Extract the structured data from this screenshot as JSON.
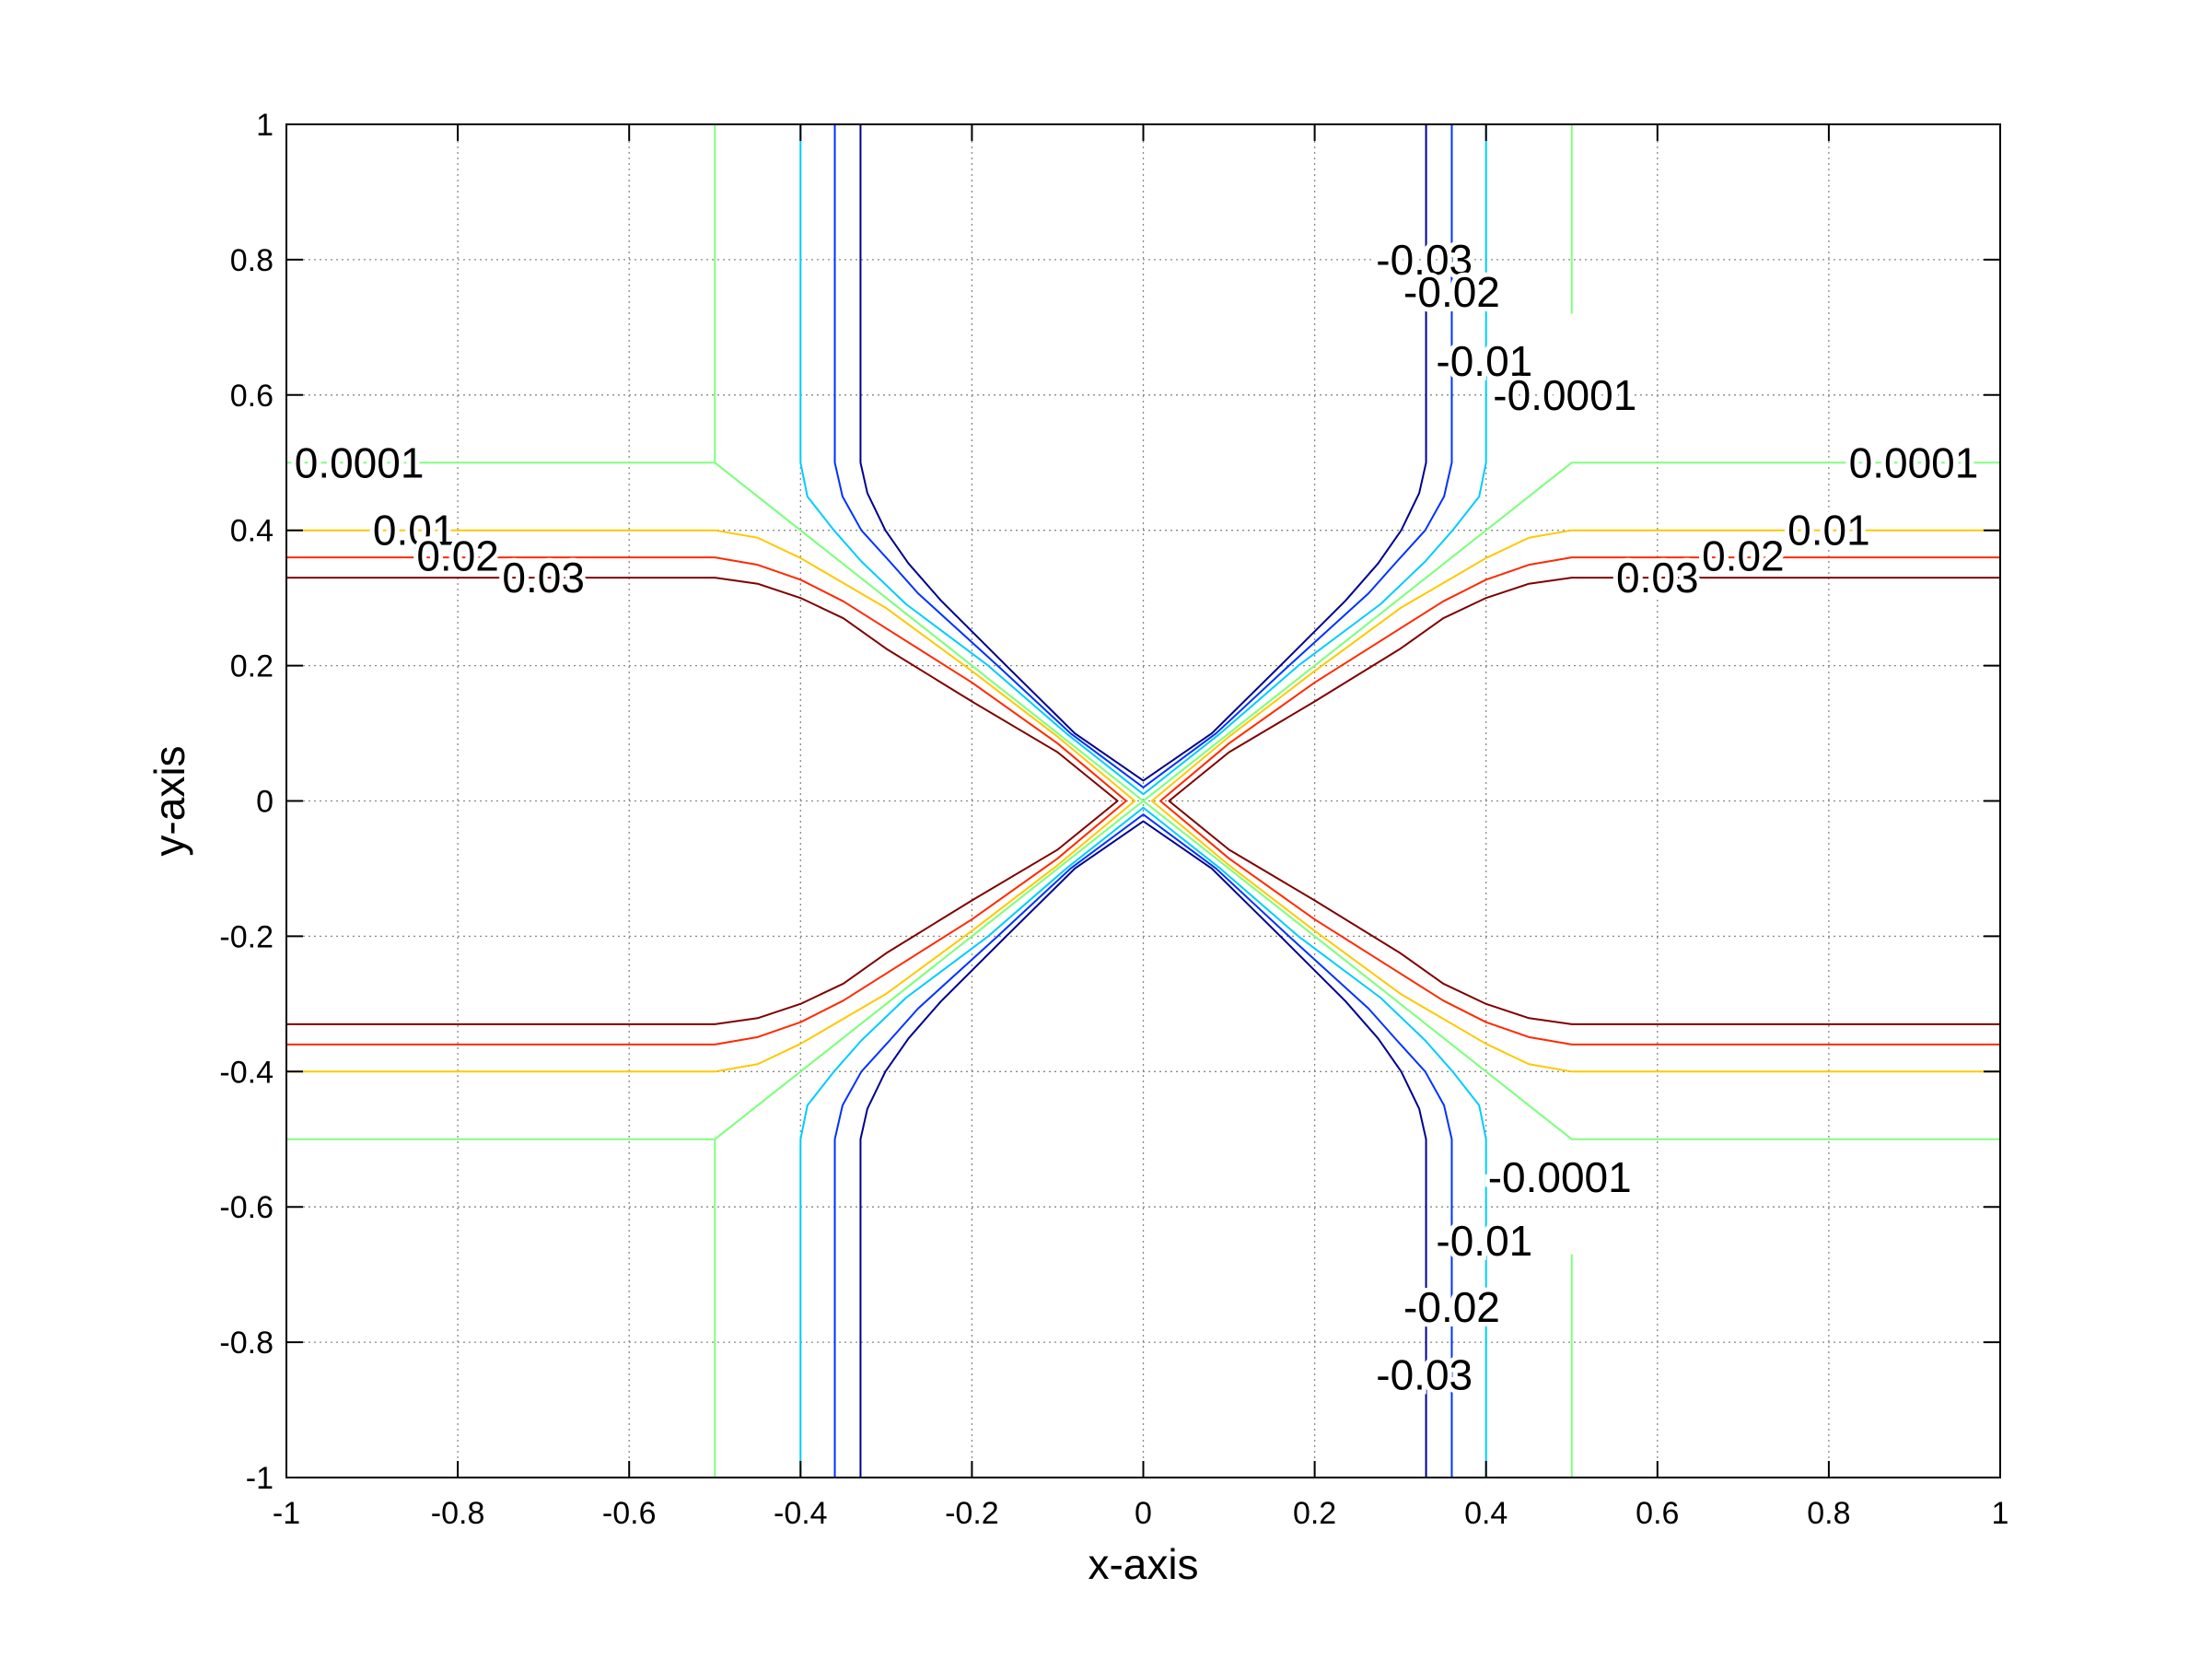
{
  "chart_data": {
    "type": "contour",
    "title": "",
    "xlabel": "x-axis",
    "ylabel": "y-axis",
    "xlim": [
      -1,
      1
    ],
    "ylim": [
      -1,
      1
    ],
    "grid": true,
    "xticks": [
      -1,
      -0.8,
      -0.6,
      -0.4,
      -0.2,
      0,
      0.2,
      0.4,
      0.6,
      0.8,
      1
    ],
    "yticks": [
      -1,
      -0.8,
      -0.6,
      -0.4,
      -0.2,
      0,
      0.2,
      0.4,
      0.6,
      0.8,
      1
    ],
    "xtick_labels": [
      "-1",
      "-0.8",
      "-0.6",
      "-0.4",
      "-0.2",
      "0",
      "0.2",
      "0.4",
      "0.6",
      "0.8",
      "1"
    ],
    "ytick_labels": [
      "-1",
      "-0.8",
      "-0.6",
      "-0.4",
      "-0.2",
      "0",
      "0.2",
      "0.4",
      "0.6",
      "0.8",
      "1"
    ],
    "levels": [
      -0.03,
      -0.02,
      -0.01,
      -0.0001,
      0.0001,
      0.01,
      0.02,
      0.03
    ],
    "contours": [
      {
        "level": 0.03,
        "color": "#800000",
        "lines": [
          [
            [
              1,
              0.33
            ],
            [
              0.5,
              0.33
            ],
            [
              0.45,
              0.321
            ],
            [
              0.4,
              0.3
            ],
            [
              0.35,
              0.27
            ],
            [
              0.3,
              0.225
            ],
            [
              0.2,
              0.147
            ],
            [
              0.1,
              0.072
            ],
            [
              0.03,
              0
            ],
            [
              0.1,
              -0.072
            ],
            [
              0.2,
              -0.147
            ],
            [
              0.3,
              -0.225
            ],
            [
              0.35,
              -0.27
            ],
            [
              0.4,
              -0.3
            ],
            [
              0.45,
              -0.321
            ],
            [
              0.5,
              -0.33
            ],
            [
              1,
              -0.33
            ]
          ],
          [
            [
              -1,
              0.33
            ],
            [
              -0.5,
              0.33
            ],
            [
              -0.45,
              0.321
            ],
            [
              -0.4,
              0.3
            ],
            [
              -0.35,
              0.27
            ],
            [
              -0.3,
              0.225
            ],
            [
              -0.2,
              0.147
            ],
            [
              -0.1,
              0.072
            ],
            [
              -0.03,
              0
            ],
            [
              -0.1,
              -0.072
            ],
            [
              -0.2,
              -0.147
            ],
            [
              -0.3,
              -0.225
            ],
            [
              -0.35,
              -0.27
            ],
            [
              -0.4,
              -0.3
            ],
            [
              -0.45,
              -0.321
            ],
            [
              -0.5,
              -0.33
            ],
            [
              -1,
              -0.33
            ]
          ]
        ]
      },
      {
        "level": 0.02,
        "color": "#ff2a00",
        "lines": [
          [
            [
              1,
              0.36
            ],
            [
              0.5,
              0.36
            ],
            [
              0.45,
              0.349
            ],
            [
              0.4,
              0.327
            ],
            [
              0.35,
              0.295
            ],
            [
              0.3,
              0.255
            ],
            [
              0.2,
              0.175
            ],
            [
              0.1,
              0.085
            ],
            [
              0.02,
              0
            ],
            [
              0.1,
              -0.085
            ],
            [
              0.2,
              -0.175
            ],
            [
              0.3,
              -0.255
            ],
            [
              0.35,
              -0.295
            ],
            [
              0.4,
              -0.327
            ],
            [
              0.45,
              -0.349
            ],
            [
              0.5,
              -0.36
            ],
            [
              1,
              -0.36
            ]
          ],
          [
            [
              -1,
              0.36
            ],
            [
              -0.5,
              0.36
            ],
            [
              -0.45,
              0.349
            ],
            [
              -0.4,
              0.327
            ],
            [
              -0.35,
              0.295
            ],
            [
              -0.3,
              0.255
            ],
            [
              -0.2,
              0.175
            ],
            [
              -0.1,
              0.085
            ],
            [
              -0.02,
              0
            ],
            [
              -0.1,
              -0.085
            ],
            [
              -0.2,
              -0.175
            ],
            [
              -0.3,
              -0.255
            ],
            [
              -0.35,
              -0.295
            ],
            [
              -0.4,
              -0.327
            ],
            [
              -0.45,
              -0.349
            ],
            [
              -0.5,
              -0.36
            ],
            [
              -1,
              -0.36
            ]
          ]
        ]
      },
      {
        "level": 0.01,
        "color": "#ffc800",
        "lines": [
          [
            [
              1,
              0.4
            ],
            [
              0.5,
              0.4
            ],
            [
              0.45,
              0.389
            ],
            [
              0.4,
              0.359
            ],
            [
              0.35,
              0.322
            ],
            [
              0.3,
              0.285
            ],
            [
              0.2,
              0.192
            ],
            [
              0.1,
              0.095
            ],
            [
              0.01,
              0
            ],
            [
              0.1,
              -0.095
            ],
            [
              0.2,
              -0.192
            ],
            [
              0.3,
              -0.285
            ],
            [
              0.35,
              -0.322
            ],
            [
              0.4,
              -0.359
            ],
            [
              0.45,
              -0.389
            ],
            [
              0.5,
              -0.4
            ],
            [
              1,
              -0.4
            ]
          ],
          [
            [
              -1,
              0.4
            ],
            [
              -0.5,
              0.4
            ],
            [
              -0.45,
              0.389
            ],
            [
              -0.4,
              0.359
            ],
            [
              -0.35,
              0.322
            ],
            [
              -0.3,
              0.285
            ],
            [
              -0.2,
              0.192
            ],
            [
              -0.1,
              0.095
            ],
            [
              -0.01,
              0
            ],
            [
              -0.1,
              -0.095
            ],
            [
              -0.2,
              -0.192
            ],
            [
              -0.3,
              -0.285
            ],
            [
              -0.35,
              -0.322
            ],
            [
              -0.4,
              -0.359
            ],
            [
              -0.45,
              -0.389
            ],
            [
              -0.5,
              -0.4
            ],
            [
              -1,
              -0.4
            ]
          ]
        ]
      },
      {
        "level": 0.0001,
        "color": "#80ff80",
        "lines": [
          [
            [
              1,
              0.5
            ],
            [
              0.5,
              0.5
            ],
            [
              0,
              0
            ],
            [
              0.5,
              -0.5
            ],
            [
              1,
              -0.5
            ]
          ],
          [
            [
              -1,
              0.5
            ],
            [
              -0.5,
              0.5
            ],
            [
              0,
              0
            ],
            [
              -0.5,
              -0.5
            ],
            [
              -1,
              -0.5
            ]
          ]
        ]
      },
      {
        "level": -0.0001,
        "color": "#80ff80",
        "lines": [
          [
            [
              -0.5,
              1
            ],
            [
              -0.5,
              0.5
            ],
            [
              0,
              0
            ],
            [
              0.5,
              0.5
            ]
          ],
          [
            [
              0.5,
              0.72
            ],
            [
              0.5,
              1
            ]
          ],
          [
            [
              -0.5,
              -1
            ],
            [
              -0.5,
              -0.5
            ],
            [
              0,
              0
            ],
            [
              0.5,
              -0.5
            ]
          ],
          [
            [
              0.5,
              -0.67
            ],
            [
              0.5,
              -1
            ]
          ]
        ]
      },
      {
        "level": -0.01,
        "color": "#00ccff",
        "lines": [
          [
            [
              0.4,
              1
            ],
            [
              0.4,
              0.5
            ],
            [
              0.392,
              0.45
            ],
            [
              0.361,
              0.4
            ],
            [
              0.329,
              0.354
            ],
            [
              0.277,
              0.291
            ],
            [
              0.181,
              0.2
            ],
            [
              0.09,
              0.1
            ],
            [
              0,
              0.01
            ],
            [
              -0.09,
              0.1
            ],
            [
              -0.181,
              0.2
            ],
            [
              -0.277,
              0.291
            ],
            [
              -0.329,
              0.354
            ],
            [
              -0.361,
              0.4
            ],
            [
              -0.392,
              0.45
            ],
            [
              -0.4,
              0.5
            ],
            [
              -0.4,
              1
            ]
          ],
          [
            [
              0.4,
              -1
            ],
            [
              0.4,
              -0.5
            ],
            [
              0.392,
              -0.45
            ],
            [
              0.361,
              -0.4
            ],
            [
              0.329,
              -0.354
            ],
            [
              0.277,
              -0.291
            ],
            [
              0.181,
              -0.2
            ],
            [
              0.09,
              -0.1
            ],
            [
              0,
              -0.01
            ],
            [
              -0.09,
              -0.1
            ],
            [
              -0.181,
              -0.2
            ],
            [
              -0.277,
              -0.291
            ],
            [
              -0.329,
              -0.354
            ],
            [
              -0.361,
              -0.4
            ],
            [
              -0.392,
              -0.45
            ],
            [
              -0.4,
              -0.5
            ],
            [
              -0.4,
              -1
            ]
          ]
        ]
      },
      {
        "level": -0.02,
        "color": "#0033ff",
        "lines": [
          [
            [
              0.36,
              1
            ],
            [
              0.36,
              0.5
            ],
            [
              0.351,
              0.45
            ],
            [
              0.329,
              0.4
            ],
            [
              0.296,
              0.354
            ],
            [
              0.263,
              0.307
            ],
            [
              0.17,
              0.2
            ],
            [
              0.085,
              0.1
            ],
            [
              0,
              0.02
            ],
            [
              -0.085,
              0.1
            ],
            [
              -0.17,
              0.2
            ],
            [
              -0.263,
              0.307
            ],
            [
              -0.296,
              0.354
            ],
            [
              -0.329,
              0.4
            ],
            [
              -0.351,
              0.45
            ],
            [
              -0.36,
              0.5
            ],
            [
              -0.36,
              1
            ]
          ],
          [
            [
              0.36,
              -1
            ],
            [
              0.36,
              -0.5
            ],
            [
              0.351,
              -0.45
            ],
            [
              0.329,
              -0.4
            ],
            [
              0.296,
              -0.354
            ],
            [
              0.263,
              -0.307
            ],
            [
              0.17,
              -0.2
            ],
            [
              0.085,
              -0.1
            ],
            [
              0,
              -0.02
            ],
            [
              -0.085,
              -0.1
            ],
            [
              -0.17,
              -0.2
            ],
            [
              -0.263,
              -0.307
            ],
            [
              -0.296,
              -0.354
            ],
            [
              -0.329,
              -0.4
            ],
            [
              -0.351,
              -0.45
            ],
            [
              -0.36,
              -0.5
            ],
            [
              -0.36,
              -1
            ]
          ]
        ]
      },
      {
        "level": -0.03,
        "color": "#00008f",
        "lines": [
          [
            [
              0.33,
              1
            ],
            [
              0.33,
              0.5
            ],
            [
              0.322,
              0.455
            ],
            [
              0.301,
              0.4
            ],
            [
              0.274,
              0.351
            ],
            [
              0.236,
              0.296
            ],
            [
              0.16,
              0.2
            ],
            [
              0.08,
              0.1
            ],
            [
              0,
              0.03
            ],
            [
              -0.08,
              0.1
            ],
            [
              -0.16,
              0.2
            ],
            [
              -0.236,
              0.296
            ],
            [
              -0.274,
              0.351
            ],
            [
              -0.301,
              0.4
            ],
            [
              -0.322,
              0.455
            ],
            [
              -0.33,
              0.5
            ],
            [
              -0.33,
              1
            ]
          ],
          [
            [
              0.33,
              -1
            ],
            [
              0.33,
              -0.5
            ],
            [
              0.322,
              -0.455
            ],
            [
              0.301,
              -0.4
            ],
            [
              0.274,
              -0.351
            ],
            [
              0.236,
              -0.296
            ],
            [
              0.16,
              -0.2
            ],
            [
              0.08,
              -0.1
            ],
            [
              0,
              -0.03
            ],
            [
              -0.08,
              -0.1
            ],
            [
              -0.16,
              -0.2
            ],
            [
              -0.236,
              -0.296
            ],
            [
              -0.274,
              -0.351
            ],
            [
              -0.301,
              -0.4
            ],
            [
              -0.322,
              -0.455
            ],
            [
              -0.33,
              -0.5
            ],
            [
              -0.33,
              -1
            ]
          ]
        ]
      }
    ],
    "contour_labels": [
      {
        "text": "-0.03",
        "x": 0.328,
        "y": 0.8
      },
      {
        "text": "-0.02",
        "x": 0.36,
        "y": 0.752
      },
      {
        "text": "-0.01",
        "x": 0.398,
        "y": 0.65
      },
      {
        "text": "-0.0001",
        "x": 0.492,
        "y": 0.6
      },
      {
        "text": "0.0001",
        "x": -0.915,
        "y": 0.5
      },
      {
        "text": "0.01",
        "x": -0.851,
        "y": 0.4
      },
      {
        "text": "0.02",
        "x": -0.8,
        "y": 0.362
      },
      {
        "text": "0.03",
        "x": -0.7,
        "y": 0.33
      },
      {
        "text": "0.0001",
        "x": 0.899,
        "y": 0.5
      },
      {
        "text": "0.01",
        "x": 0.8,
        "y": 0.4
      },
      {
        "text": "0.02",
        "x": 0.7,
        "y": 0.362
      },
      {
        "text": "0.03",
        "x": 0.6,
        "y": 0.33
      },
      {
        "text": "-0.0001",
        "x": 0.486,
        "y": -0.556
      },
      {
        "text": "-0.01",
        "x": 0.398,
        "y": -0.65
      },
      {
        "text": "-0.02",
        "x": 0.36,
        "y": -0.748
      },
      {
        "text": "-0.03",
        "x": 0.328,
        "y": -0.848
      }
    ]
  }
}
